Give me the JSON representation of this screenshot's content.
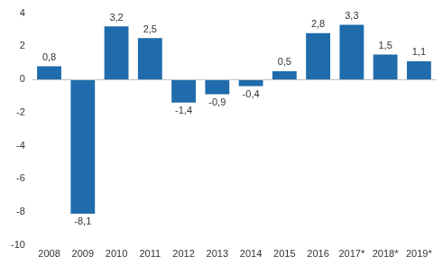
{
  "chart_data": {
    "type": "bar",
    "categories": [
      "2008",
      "2009",
      "2010",
      "2011",
      "2012",
      "2013",
      "2014",
      "2015",
      "2016",
      "2017*",
      "2018*",
      "2019*"
    ],
    "values": [
      0.8,
      -8.1,
      3.2,
      2.5,
      -1.4,
      -0.9,
      -0.4,
      0.5,
      2.8,
      3.3,
      1.5,
      1.1
    ],
    "value_labels": [
      "0,8",
      "-8,1",
      "3,2",
      "2,5",
      "-1,4",
      "-0,9",
      "-0,4",
      "0,5",
      "2,8",
      "3,3",
      "1,5",
      "1,1"
    ],
    "data_labels": true,
    "color": "#1f6bab",
    "ylim": [
      -10,
      4
    ],
    "yticks": [
      -10,
      -8,
      -6,
      -4,
      -2,
      0,
      2,
      4
    ],
    "grid": false
  }
}
